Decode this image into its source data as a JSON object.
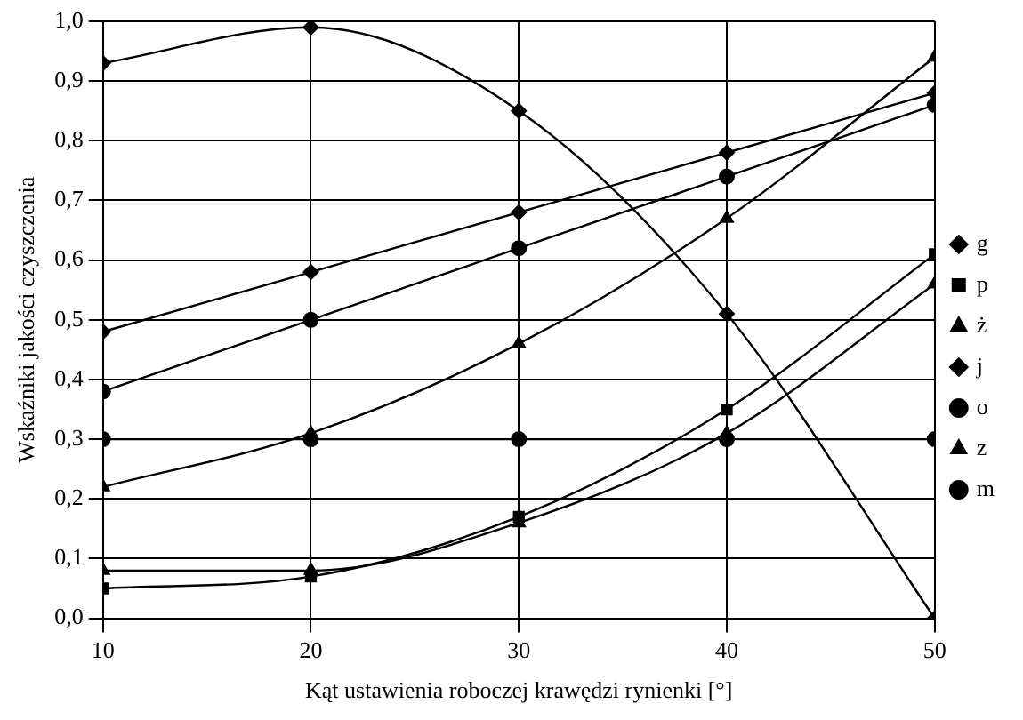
{
  "chart_data": {
    "type": "line",
    "xlabel": "Kąt ustawienia roboczej krawędzi rynienki [°]",
    "ylabel": "Wskaźniki jakości czyszczenia",
    "x": [
      10,
      20,
      30,
      40,
      50
    ],
    "xlim": [
      10,
      50
    ],
    "xticks": [
      10,
      20,
      30,
      40,
      50
    ],
    "ylim": [
      0,
      1
    ],
    "yticks": [
      {
        "value": 0,
        "label": "0,0"
      },
      {
        "value": 0.1,
        "label": "0,1"
      },
      {
        "value": 0.2,
        "label": "0,2"
      },
      {
        "value": 0.3,
        "label": "0,3"
      },
      {
        "value": 0.4,
        "label": "0,4"
      },
      {
        "value": 0.5,
        "label": "0,5"
      },
      {
        "value": 0.6,
        "label": "0,6"
      },
      {
        "value": 0.7,
        "label": "0,7"
      },
      {
        "value": 0.8,
        "label": "0,8"
      },
      {
        "value": 0.9,
        "label": "0,9"
      },
      {
        "value": 1,
        "label": "1,0"
      }
    ],
    "grid": true,
    "legend": "right",
    "line_style": "solid",
    "series": [
      {
        "name": "g",
        "color": "#000000",
        "marker": "diamond",
        "values": [
          0.93,
          0.99,
          0.85,
          0.51,
          0.0
        ]
      },
      {
        "name": "p",
        "color": "#000000",
        "marker": "square",
        "values": [
          0.05,
          0.07,
          0.17,
          0.35,
          0.61
        ]
      },
      {
        "name": "ż",
        "color": "#000000",
        "marker": "triangle",
        "values": [
          0.08,
          0.08,
          0.16,
          0.31,
          0.56
        ]
      },
      {
        "name": "j",
        "color": "#000000",
        "marker": "diamond",
        "values": [
          0.48,
          0.58,
          0.68,
          0.78,
          0.88
        ]
      },
      {
        "name": "o",
        "color": "#000000",
        "marker": "circle",
        "values": [
          0.38,
          0.5,
          0.62,
          0.74,
          0.86
        ]
      },
      {
        "name": "z",
        "color": "#000000",
        "marker": "triangle",
        "values": [
          0.22,
          0.31,
          0.46,
          0.67,
          0.94
        ]
      },
      {
        "name": "m",
        "color": "#000000",
        "marker": "circle",
        "values": [
          0.3,
          0.3,
          0.3,
          0.3,
          0.3
        ]
      }
    ]
  }
}
